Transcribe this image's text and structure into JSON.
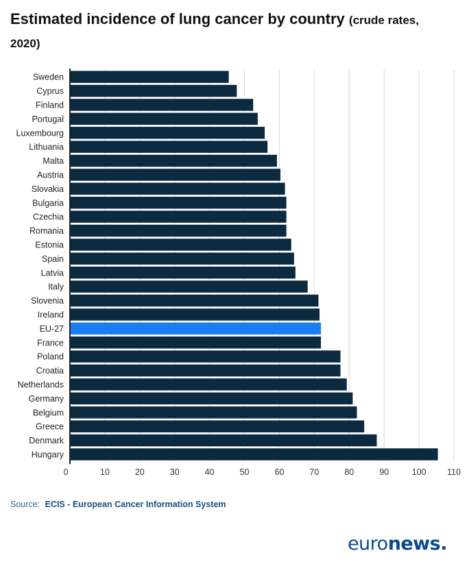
{
  "header": {
    "title": "Estimated incidence of lung cancer by country",
    "subtitle": "(crude rates, 2020)"
  },
  "source": {
    "label": "Source:",
    "name": "ECIS - European Cancer Information System"
  },
  "logo": {
    "part1": "euro",
    "part2": "news."
  },
  "colors": {
    "bar": "#0b2a40",
    "highlight": "#1a7ef0",
    "grid": "#d9d9d9",
    "axis": "#222222"
  },
  "chart_data": {
    "type": "bar",
    "orientation": "horizontal",
    "categories": [
      "Sweden",
      "Cyprus",
      "Finland",
      "Portugal",
      "Luxembourg",
      "Lithuania",
      "Malta",
      "Austria",
      "Slovakia",
      "Bulgaria",
      "Czechia",
      "Romania",
      "Estonia",
      "Spain",
      "Latvia",
      "Italy",
      "Slovenia",
      "Ireland",
      "EU-27",
      "France",
      "Poland",
      "Croatia",
      "Netherlands",
      "Germany",
      "Belgium",
      "Greece",
      "Denmark",
      "Hungary"
    ],
    "values": [
      45.5,
      47.8,
      52.5,
      53.8,
      55.8,
      56.6,
      59.3,
      60.3,
      61.6,
      62.0,
      62.0,
      62.0,
      63.4,
      64.2,
      64.6,
      68.1,
      71.2,
      71.5,
      71.9,
      71.9,
      77.5,
      77.5,
      79.3,
      81.0,
      82.2,
      84.3,
      87.9,
      105.4
    ],
    "highlight": "EU-27",
    "xlim": [
      0,
      110
    ],
    "xticks": [
      0,
      10,
      20,
      30,
      40,
      50,
      60,
      70,
      80,
      90,
      100,
      110
    ],
    "grid": true
  }
}
